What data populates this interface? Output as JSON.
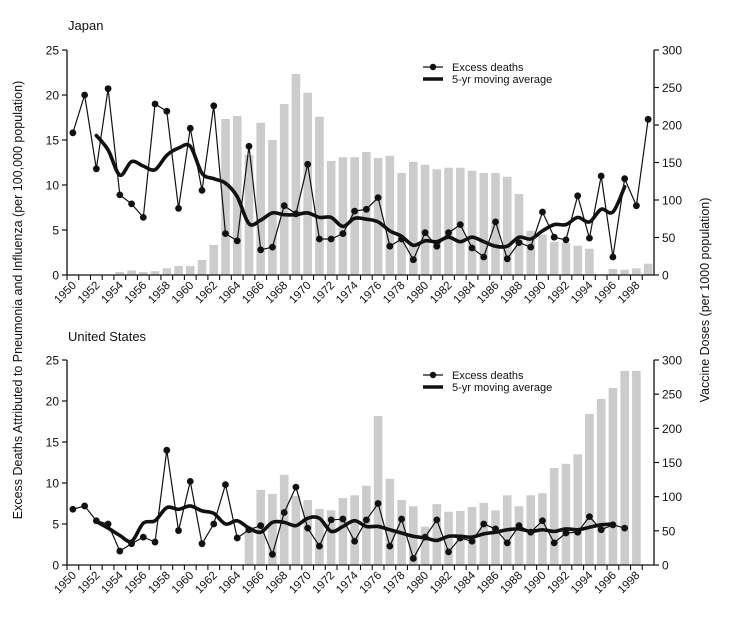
{
  "chart_data": [
    {
      "type": "bar+line",
      "title": "Japan",
      "ylabel": "Excess Deaths Attributed to Pneumonia and Influenza (per 100,000 population)",
      "y2label": "Vaccine Doses (per 1000 population)",
      "ylim": [
        0,
        25
      ],
      "y2lim": [
        0,
        300
      ],
      "yticks": [
        "0",
        "5",
        "10",
        "15",
        "20",
        "25"
      ],
      "y2ticks": [
        "0",
        "50",
        "100",
        "150",
        "200",
        "250",
        "300"
      ],
      "xticks": [
        "1950",
        "1952",
        "1954",
        "1956",
        "1958",
        "1960",
        "1962",
        "1964",
        "1966",
        "1968",
        "1970",
        "1972",
        "1974",
        "1976",
        "1978",
        "1980",
        "1982",
        "1984",
        "1986",
        "1988",
        "1990",
        "1992",
        "1994",
        "1996",
        "1998"
      ],
      "legend": {
        "position": "top-right",
        "entries": [
          "Excess deaths",
          "5-yr moving average"
        ]
      },
      "bars": {
        "name": "Vaccine doses",
        "x": [
          1954,
          1955,
          1956,
          1957,
          1958,
          1959,
          1960,
          1961,
          1962,
          1963,
          1964,
          1965,
          1966,
          1967,
          1968,
          1969,
          1970,
          1971,
          1972,
          1973,
          1974,
          1975,
          1976,
          1977,
          1978,
          1979,
          1980,
          1981,
          1982,
          1983,
          1984,
          1985,
          1986,
          1987,
          1988,
          1989,
          1990,
          1991,
          1992,
          1993,
          1994,
          1996,
          1997,
          1998,
          1999
        ],
        "values": [
          4,
          6,
          4,
          5,
          9,
          12,
          12,
          20,
          40,
          208,
          212,
          160,
          203,
          180,
          228,
          268,
          243,
          211,
          152,
          157,
          157,
          164,
          156,
          159,
          136,
          151,
          147,
          141,
          143,
          143,
          139,
          136,
          136,
          131,
          108,
          59,
          54,
          44,
          43,
          39,
          35,
          8,
          7,
          9,
          15
        ]
      },
      "series": [
        {
          "name": "Excess deaths",
          "x": [
            1950,
            1951,
            1952,
            1953,
            1954,
            1955,
            1956,
            1957,
            1958,
            1959,
            1960,
            1961,
            1962,
            1963,
            1964,
            1965,
            1966,
            1967,
            1968,
            1969,
            1970,
            1971,
            1972,
            1973,
            1974,
            1975,
            1976,
            1977,
            1978,
            1979,
            1980,
            1981,
            1982,
            1983,
            1984,
            1985,
            1986,
            1987,
            1988,
            1989,
            1990,
            1991,
            1992,
            1993,
            1994,
            1995,
            1996,
            1997,
            1998,
            1999
          ],
          "values": [
            15.8,
            20.0,
            11.8,
            20.7,
            8.9,
            7.9,
            6.4,
            19.0,
            18.2,
            7.4,
            16.3,
            9.4,
            18.8,
            4.6,
            3.8,
            14.3,
            2.8,
            3.1,
            7.7,
            6.8,
            12.3,
            4.0,
            4.0,
            4.6,
            7.1,
            7.3,
            8.6,
            3.2,
            4.0,
            1.7,
            4.7,
            3.2,
            4.7,
            5.6,
            3.0,
            2.0,
            5.9,
            1.8,
            3.6,
            3.1,
            7.0,
            4.2,
            3.9,
            8.8,
            4.1,
            11.0,
            2.0,
            10.7,
            7.7,
            17.3
          ]
        },
        {
          "name": "5-yr moving average",
          "x": [
            1952,
            1953,
            1954,
            1955,
            1956,
            1957,
            1958,
            1959,
            1960,
            1961,
            1962,
            1963,
            1964,
            1965,
            1966,
            1967,
            1968,
            1969,
            1970,
            1971,
            1972,
            1973,
            1974,
            1975,
            1976,
            1977,
            1978,
            1979,
            1980,
            1981,
            1982,
            1983,
            1984,
            1985,
            1986,
            1987,
            1988,
            1989,
            1990,
            1991,
            1992,
            1993,
            1994,
            1995,
            1996,
            1997
          ],
          "values": [
            15.5,
            13.9,
            11.1,
            12.6,
            12.1,
            11.7,
            13.3,
            14.1,
            14.3,
            11.3,
            10.7,
            10.2,
            8.7,
            5.7,
            6.1,
            6.9,
            6.7,
            6.7,
            6.9,
            6.4,
            6.4,
            5.4,
            6.3,
            6.2,
            5.9,
            4.9,
            4.3,
            3.3,
            3.8,
            3.7,
            4.2,
            3.7,
            4.2,
            3.7,
            3.2,
            3.2,
            4.2,
            4.0,
            4.9,
            5.6,
            5.6,
            6.4,
            5.9,
            7.3,
            7.0,
            9.8
          ]
        }
      ]
    },
    {
      "type": "bar+line",
      "title": "United States",
      "ylabel": "Excess Deaths Attributed to Pneumonia and Influenza (per 100,000 population)",
      "y2label": "Vaccine Doses (per 1000 population)",
      "ylim": [
        0,
        25
      ],
      "y2lim": [
        0,
        300
      ],
      "yticks": [
        "0",
        "5",
        "10",
        "15",
        "20",
        "25"
      ],
      "y2ticks": [
        "0",
        "50",
        "100",
        "150",
        "200",
        "250",
        "300"
      ],
      "xticks": [
        "1950",
        "1952",
        "1954",
        "1956",
        "1958",
        "1960",
        "1962",
        "1964",
        "1966",
        "1968",
        "1970",
        "1972",
        "1974",
        "1976",
        "1978",
        "1980",
        "1982",
        "1984",
        "1986",
        "1988",
        "1990",
        "1992",
        "1994",
        "1996",
        "1998"
      ],
      "legend": {
        "position": "top-right",
        "entries": [
          "Excess deaths",
          "5-yr moving average"
        ]
      },
      "bars": {
        "name": "Vaccine doses",
        "x": [
          1965,
          1966,
          1967,
          1968,
          1969,
          1970,
          1971,
          1972,
          1973,
          1974,
          1975,
          1976,
          1977,
          1978,
          1979,
          1980,
          1981,
          1982,
          1983,
          1984,
          1985,
          1986,
          1987,
          1988,
          1989,
          1990,
          1991,
          1992,
          1993,
          1994,
          1995,
          1996,
          1997,
          1998
        ],
        "values": [
          56,
          110,
          104,
          132,
          101,
          95,
          82,
          80,
          98,
          102,
          116,
          218,
          126,
          95,
          86,
          56,
          89,
          78,
          79,
          85,
          91,
          80,
          102,
          86,
          102,
          105,
          142,
          148,
          162,
          221,
          243,
          259,
          284,
          284
        ]
      },
      "series": [
        {
          "name": "Excess deaths",
          "x": [
            1950,
            1951,
            1952,
            1953,
            1954,
            1955,
            1956,
            1957,
            1958,
            1959,
            1960,
            1961,
            1962,
            1963,
            1964,
            1965,
            1966,
            1967,
            1968,
            1969,
            1970,
            1971,
            1972,
            1973,
            1974,
            1975,
            1976,
            1977,
            1978,
            1979,
            1980,
            1981,
            1982,
            1983,
            1984,
            1985,
            1986,
            1987,
            1988,
            1989,
            1990,
            1991,
            1992,
            1993,
            1994,
            1995,
            1996,
            1997
          ],
          "values": [
            6.8,
            7.2,
            5.4,
            5.0,
            1.7,
            2.6,
            3.4,
            2.8,
            14.0,
            4.2,
            10.2,
            2.6,
            5.0,
            9.8,
            3.3,
            4.3,
            4.8,
            1.3,
            6.4,
            9.5,
            4.5,
            2.3,
            5.5,
            5.6,
            2.9,
            5.5,
            7.5,
            2.3,
            5.6,
            0.8,
            3.4,
            5.5,
            1.6,
            3.3,
            2.9,
            5.0,
            4.4,
            2.7,
            4.8,
            4.0,
            5.4,
            2.7,
            3.9,
            4.0,
            5.9,
            4.3,
            4.9,
            4.5
          ]
        },
        {
          "name": "5-yr moving average",
          "x": [
            1952,
            1953,
            1954,
            1955,
            1956,
            1957,
            1958,
            1959,
            1960,
            1961,
            1962,
            1963,
            1964,
            1965,
            1966,
            1967,
            1968,
            1969,
            1970,
            1971,
            1972,
            1973,
            1974,
            1975,
            1976,
            1977,
            1978,
            1979,
            1980,
            1981,
            1982,
            1983,
            1984,
            1985,
            1986,
            1987,
            1988,
            1989,
            1990,
            1991,
            1992,
            1993,
            1994,
            1995,
            1996
          ],
          "values": [
            5.3,
            4.5,
            3.6,
            2.9,
            5.1,
            5.4,
            7.0,
            6.8,
            7.2,
            6.6,
            6.3,
            5.0,
            5.4,
            4.5,
            4.0,
            5.2,
            5.2,
            4.8,
            5.7,
            5.7,
            4.1,
            4.7,
            5.4,
            4.7,
            4.7,
            4.3,
            3.9,
            3.5,
            3.3,
            3.0,
            3.5,
            3.5,
            3.4,
            3.8,
            4.0,
            4.3,
            4.4,
            4.1,
            4.3,
            4.1,
            4.4,
            4.3,
            4.6,
            4.9,
            5.0
          ]
        }
      ]
    }
  ],
  "colors": {
    "bar": "#cccccc",
    "line": "#111111"
  }
}
